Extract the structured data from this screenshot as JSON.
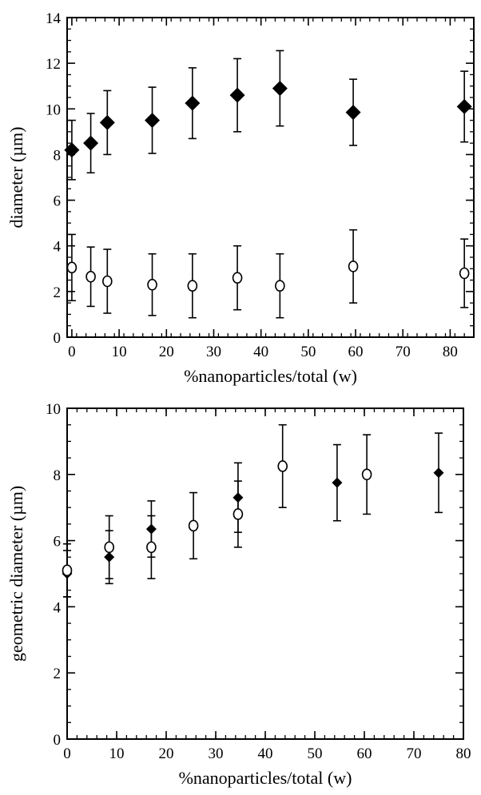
{
  "chart_data": [
    {
      "type": "scatter",
      "title": "",
      "xlabel": "%nanoparticles/total (w)",
      "ylabel": "diameter (µm)",
      "xlim": [
        -1,
        85
      ],
      "ylim": [
        0,
        14
      ],
      "xticks": [
        0,
        10,
        20,
        30,
        40,
        50,
        60,
        70,
        80
      ],
      "yticks": [
        0,
        2,
        4,
        6,
        8,
        10,
        12,
        14
      ],
      "grid": false,
      "series": [
        {
          "marker": "filled-diamond",
          "color": "#000000",
          "points": [
            {
              "x": 0,
              "y": 8.2,
              "err": 1.3
            },
            {
              "x": 4,
              "y": 8.5,
              "err": 1.3
            },
            {
              "x": 7.5,
              "y": 9.4,
              "err": 1.4
            },
            {
              "x": 17,
              "y": 9.5,
              "err": 1.45
            },
            {
              "x": 25.5,
              "y": 10.25,
              "err": 1.55
            },
            {
              "x": 35,
              "y": 10.6,
              "err": 1.6
            },
            {
              "x": 44,
              "y": 10.9,
              "err": 1.65
            },
            {
              "x": 59.5,
              "y": 9.85,
              "err": 1.45
            },
            {
              "x": 83,
              "y": 10.1,
              "err": 1.55
            }
          ]
        },
        {
          "marker": "open-circle",
          "color": "#000000",
          "points": [
            {
              "x": 0,
              "y": 3.05,
              "err": 1.45
            },
            {
              "x": 4,
              "y": 2.65,
              "err": 1.3
            },
            {
              "x": 7.5,
              "y": 2.45,
              "err": 1.4
            },
            {
              "x": 17,
              "y": 2.3,
              "err": 1.35
            },
            {
              "x": 25.5,
              "y": 2.25,
              "err": 1.4
            },
            {
              "x": 35,
              "y": 2.6,
              "err": 1.4
            },
            {
              "x": 44,
              "y": 2.25,
              "err": 1.4
            },
            {
              "x": 59.5,
              "y": 3.1,
              "err": 1.6
            },
            {
              "x": 83,
              "y": 2.8,
              "err": 1.5
            }
          ]
        }
      ]
    },
    {
      "type": "scatter",
      "title": "",
      "xlabel": "%nanoparticles/total (w)",
      "ylabel": "geometric diameter (µm)",
      "xlim": [
        0,
        80
      ],
      "ylim": [
        0,
        10
      ],
      "xticks": [
        0,
        10,
        20,
        30,
        40,
        50,
        60,
        70,
        80
      ],
      "yticks": [
        0,
        2,
        4,
        6,
        8,
        10
      ],
      "grid": false,
      "series": [
        {
          "marker": "filled-diamond",
          "color": "#000000",
          "points": [
            {
              "x": 0,
              "y": 5.0,
              "err": 0.7
            },
            {
              "x": 8.5,
              "y": 5.5,
              "err": 0.8
            },
            {
              "x": 17,
              "y": 6.35,
              "err": 0.85
            },
            {
              "x": 34.5,
              "y": 7.3,
              "err": 1.05
            },
            {
              "x": 54.5,
              "y": 7.75,
              "err": 1.15
            },
            {
              "x": 75,
              "y": 8.05,
              "err": 1.2
            }
          ]
        },
        {
          "marker": "open-circle",
          "color": "#000000",
          "points": [
            {
              "x": 0,
              "y": 5.1,
              "err": 0.8
            },
            {
              "x": 8.5,
              "y": 5.8,
              "err": 0.95
            },
            {
              "x": 17,
              "y": 5.8,
              "err": 0.95
            },
            {
              "x": 25.5,
              "y": 6.45,
              "err": 1.0
            },
            {
              "x": 34.5,
              "y": 6.8,
              "err": 1.0
            },
            {
              "x": 43.5,
              "y": 8.25,
              "err": 1.25
            },
            {
              "x": 60.5,
              "y": 8.0,
              "err": 1.2
            }
          ]
        }
      ]
    }
  ]
}
